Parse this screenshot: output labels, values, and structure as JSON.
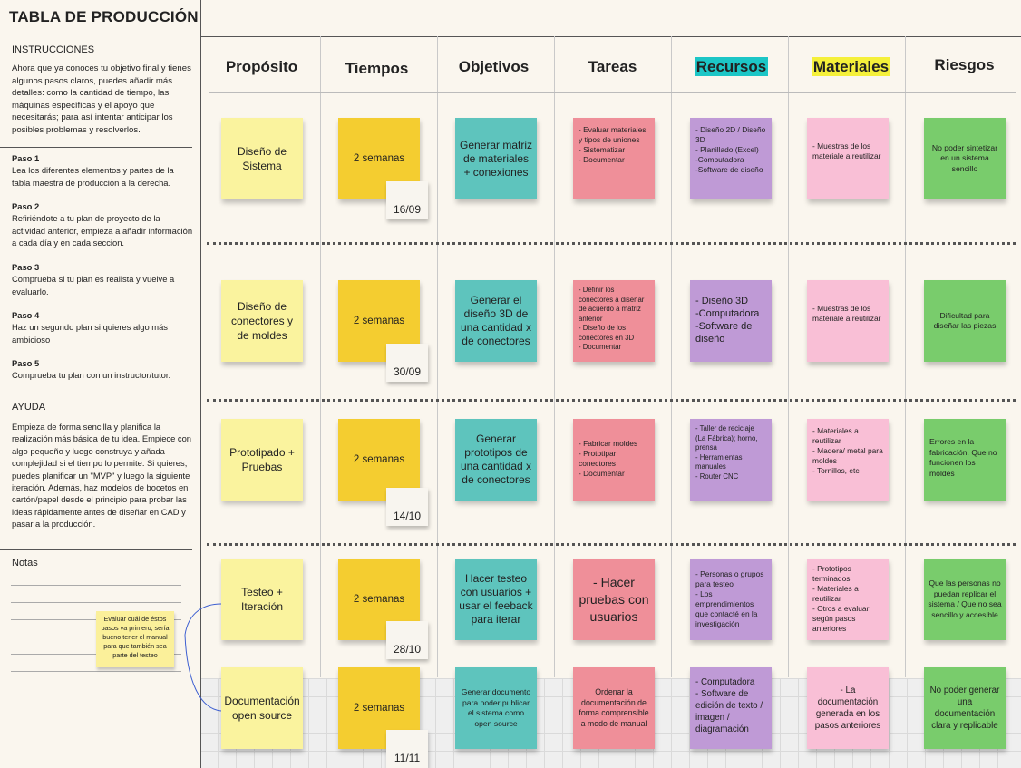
{
  "title": "TABLA DE PRODUCCIÓN",
  "instructions": {
    "heading": "INSTRUCCIONES",
    "text": "Ahora que ya conoces tu objetivo final y tienes algunos pasos claros, puedes añadir más detalles: como la cantidad de tiempo, las máquinas específicas y el apoyo que necesitarás; para así intentar anticipar los posibles problemas y resolverlos.",
    "steps": [
      {
        "label": "Paso 1",
        "text": "Lea los diferentes elementos y partes de la tabla maestra de producción a la derecha."
      },
      {
        "label": "Paso 2",
        "text": "Refiriéndote a tu plan de proyecto de la actividad anterior, empieza a añadir información a cada día y en cada seccion."
      },
      {
        "label": "Paso 3",
        "text": "Comprueba si tu plan es realista y vuelve a evaluarlo."
      },
      {
        "label": "Paso 4",
        "text": "Haz un segundo plan si quieres algo más ambicioso"
      },
      {
        "label": "Paso 5",
        "text": "Comprueba tu plan con un instructor/tutor."
      }
    ]
  },
  "help": {
    "heading": "AYUDA",
    "text": "Empieza de forma sencilla y planifica la realización más básica de tu idea. Empiece con algo pequeño y luego construya y añada complejidad si el tiempo lo permite. Si quieres, puedes planificar un \"MVP\" y luego la siguiente iteración. Además, haz modelos de bocetos en cartón/papel desde el principio para probar las ideas rápidamente antes de diseñar en CAD y pasar a la producción."
  },
  "notes": {
    "heading": "Notas",
    "sticky": "Evaluar cuál de éstos pasos va primero, sería bueno tener el manual para que también sea parte del testeo"
  },
  "columns": [
    {
      "label": "Propósito",
      "highlight": ""
    },
    {
      "label": "Tiempos",
      "highlight": ""
    },
    {
      "label": "Objetivos",
      "highlight": ""
    },
    {
      "label": "Tareas",
      "highlight": ""
    },
    {
      "label": "Recursos",
      "highlight": "#1cc6c6"
    },
    {
      "label": "Materiales",
      "highlight": "#f5f03a"
    },
    {
      "label": "Riesgos",
      "highlight": ""
    }
  ],
  "rows": [
    {
      "purpose": "Diseño de Sistema",
      "time": "2 semanas",
      "date": "16/09",
      "objective": "Generar matriz de materiales + conexiones",
      "tasks": [
        "- Evaluar materiales y tipos de uniones",
        "- Sistematizar",
        "- Documentar"
      ],
      "resources": [
        "- Diseño 2D / Diseño 3D",
        "- Planillado (Excel)",
        "-Computadora",
        "-Software de diseño"
      ],
      "materials": [
        "- Muestras de los materiale a reutilizar"
      ],
      "risks": "No poder sintetizar en un sistema sencillo"
    },
    {
      "purpose": "Diseño de conectores y de moldes",
      "time": "2 semanas",
      "date": "30/09",
      "objective": "Generar el diseño 3D de una cantidad x de conectores",
      "tasks": [
        "- Definir los conectores a diseñar de acuerdo a matriz anterior",
        "- Diseño de los conectores en 3D",
        "- Documentar"
      ],
      "resources": [
        "- Diseño 3D",
        "-Computadora",
        "-Software de diseño"
      ],
      "materials": [
        "- Muestras de los materiale a reutilizar"
      ],
      "risks": "Dificultad para diseñar las piezas"
    },
    {
      "purpose": "Prototipado + Pruebas",
      "time": "2 semanas",
      "date": "14/10",
      "objective": "Generar prototipos de una cantidad x de conectores",
      "tasks": [
        "- Fabricar moldes",
        "- Prototipar conectores",
        "- Documentar"
      ],
      "resources": [
        "- Taller de reciclaje (La Fábrica); horno, prensa",
        "- Herramientas manuales",
        "- Router CNC"
      ],
      "materials": [
        "- Materiales a reutilizar",
        "- Madera/ metal para moldes",
        "- Tornillos, etc"
      ],
      "risks": "Errores en la fabricación. Que no funcionen los moldes"
    },
    {
      "purpose": "Testeo + Iteración",
      "time": "2 semanas",
      "date": "28/10",
      "objective": "Hacer testeo con usuarios + usar el feeback para iterar",
      "tasks": [
        "- Hacer pruebas con usuarios"
      ],
      "resources": [
        "- Personas o grupos para testeo",
        "- Los emprendimientos que contacté en la investigación"
      ],
      "materials": [
        "- Prototipos terminados",
        "- Materiales a reutilizar",
        "- Otros a evaluar según pasos anteriores"
      ],
      "risks": "Que las personas no puedan replicar el sistema / Que no sea sencillo y accesible"
    },
    {
      "purpose": "Documentación open source",
      "time": "2 semanas",
      "date": "11/11",
      "objective": "Generar documento para poder publicar el sistema como open source",
      "tasks": [
        "Ordenar la documentación de forma comprensible a modo de manual"
      ],
      "resources": [
        "- Computadora",
        "- Software de edición de texto / imagen / diagramación"
      ],
      "materials": [
        "- La documentación generada en los pasos anteriores"
      ],
      "risks": "No poder generar una documentación clara y replicable"
    }
  ]
}
